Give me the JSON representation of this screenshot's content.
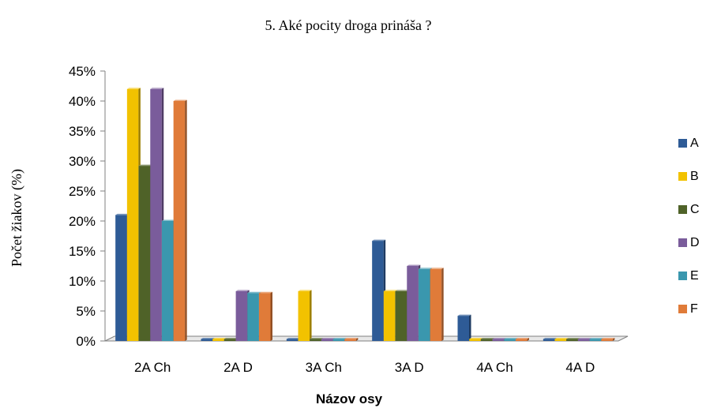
{
  "chart_data": {
    "type": "bar",
    "title": "5. Aké pocity droga prináša ?",
    "xlabel": "Názov osy",
    "ylabel": "Počet žiakov (%)",
    "categories": [
      "2A Ch",
      "2A D",
      "3A Ch",
      "3A D",
      "4A Ch",
      "4A D"
    ],
    "ylim": [
      0,
      0.45
    ],
    "yticks": [
      "0%",
      "5%",
      "10%",
      "15%",
      "20%",
      "25%",
      "30%",
      "35%",
      "40%",
      "45%"
    ],
    "legend_position": "right",
    "grid": false,
    "series": [
      {
        "name": "A",
        "color": "#2E5B96",
        "values": [
          0.21,
          0,
          0,
          0.167,
          0.042,
          0
        ]
      },
      {
        "name": "B",
        "color": "#F2C200",
        "values": [
          0.42,
          0,
          0.083,
          0.083,
          0,
          0
        ]
      },
      {
        "name": "C",
        "color": "#4F6228",
        "values": [
          0.292,
          0,
          0,
          0.083,
          0,
          0
        ]
      },
      {
        "name": "D",
        "color": "#7A5C9B",
        "values": [
          0.42,
          0.083,
          0,
          0.125,
          0,
          0
        ]
      },
      {
        "name": "E",
        "color": "#3A97AE",
        "values": [
          0.2,
          0.08,
          0,
          0.12,
          0,
          0
        ]
      },
      {
        "name": "F",
        "color": "#E07B39",
        "values": [
          0.4,
          0.08,
          0,
          0.12,
          0,
          0
        ]
      }
    ]
  }
}
